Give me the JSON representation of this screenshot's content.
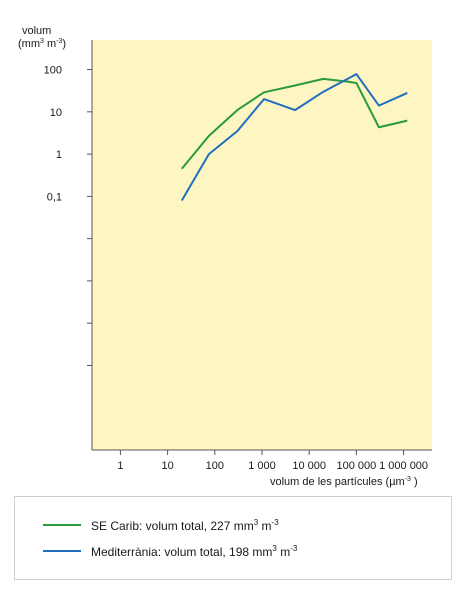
{
  "chart_data": {
    "type": "line",
    "ylabel_line1": "volum",
    "ylabel_line2": "(mm3 m-3)",
    "xlabel": "volum de les partícules (µm-3 )",
    "x_scale": "log",
    "y_scale": "log",
    "xlim": [
      0.25,
      4000000
    ],
    "ylim": [
      1e-07,
      500
    ],
    "x_ticks": [
      {
        "value": 1,
        "label": "1"
      },
      {
        "value": 10,
        "label": "10"
      },
      {
        "value": 100,
        "label": "100"
      },
      {
        "value": 1000,
        "label": "1 000"
      },
      {
        "value": 10000,
        "label": "10 000"
      },
      {
        "value": 100000,
        "label": "100 000"
      },
      {
        "value": 1000000,
        "label": "1 000 000"
      }
    ],
    "y_ticks": [
      {
        "value": 100,
        "label": "100"
      },
      {
        "value": 10,
        "label": "10"
      },
      {
        "value": 1,
        "label": "1"
      },
      {
        "value": 0.1,
        "label": "0,1"
      },
      {
        "value": 0.01,
        "label": ""
      },
      {
        "value": 0.001,
        "label": ""
      },
      {
        "value": 0.0001,
        "label": ""
      },
      {
        "value": 1e-05,
        "label": ""
      }
    ],
    "grid": false,
    "plot_background": "#fdf6c3",
    "series": [
      {
        "name": "SE Carib: volum total, 227 mm3 m-3",
        "color": "#2a9a3c",
        "x": [
          20,
          75,
          300,
          1100,
          5000,
          20000,
          65000,
          100000,
          300000,
          1200000
        ],
        "y": [
          0.45,
          2.7,
          11,
          29,
          42,
          60,
          52,
          48,
          4.3,
          6.2
        ]
      },
      {
        "name": "Mediterrània: volum total, 198 mm3 m-3",
        "color": "#1f6fc0",
        "x": [
          20,
          75,
          300,
          1100,
          5000,
          20000,
          100000,
          300000,
          1200000
        ],
        "y": [
          0.08,
          1.0,
          3.5,
          20,
          11,
          30,
          78,
          14,
          28
        ]
      }
    ]
  },
  "legend": {
    "items": [
      {
        "color": "#2a9a3c",
        "label": "SE Carib: volum total, 227 mm",
        "sup1": "3",
        "mid": " m",
        "sup2": "-3"
      },
      {
        "color": "#1f6fc0",
        "label": "Mediterrània: volum total, 198 mm",
        "sup1": "3",
        "mid": " m",
        "sup2": "-3"
      }
    ]
  }
}
